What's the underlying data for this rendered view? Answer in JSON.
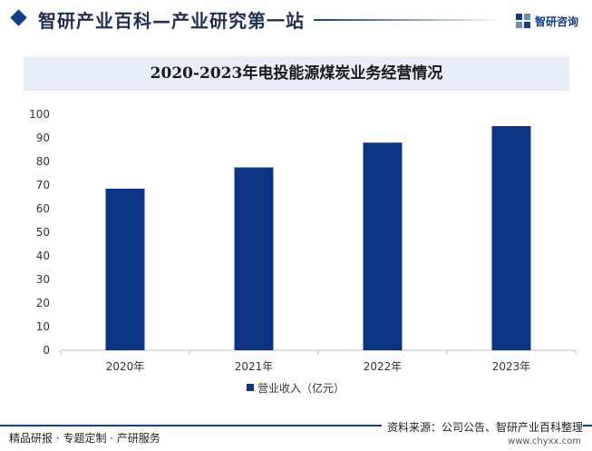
{
  "header": {
    "title": "智研产业百科—产业研究第一站",
    "logo_text": "智研咨询"
  },
  "chart_data": {
    "type": "bar",
    "title": "2020-2023年电投能源煤炭业务经营情况",
    "categories": [
      "2020年",
      "2021年",
      "2022年",
      "2023年"
    ],
    "series": [
      {
        "name": "营业收入（亿元）",
        "values": [
          68.5,
          77.5,
          88.0,
          95.0
        ],
        "color": "#0d3586"
      }
    ],
    "ylim": [
      0,
      100
    ],
    "yticks": [
      0,
      10,
      20,
      30,
      40,
      50,
      60,
      70,
      80,
      90,
      100
    ],
    "xlabel": "",
    "ylabel": "",
    "grid": false,
    "legend": "bottom-center"
  },
  "footer": {
    "left": "精品研报 · 专题定制 · 产研服务",
    "right": "资料来源：公司公告、智研产业百科整理",
    "url": "www.chyxx.com"
  }
}
